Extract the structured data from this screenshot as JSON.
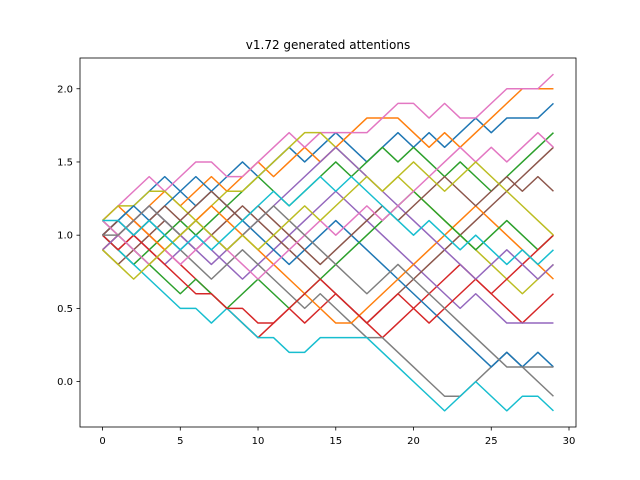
{
  "chart_data": {
    "type": "line",
    "title": "v1.72 generated attentions",
    "xlabel": "",
    "ylabel": "",
    "xlim": [
      -1.45,
      30.45
    ],
    "ylim": [
      -0.31,
      2.21
    ],
    "xticks": [
      0,
      5,
      10,
      15,
      20,
      25,
      30
    ],
    "yticks": [
      0.0,
      0.5,
      1.0,
      1.5,
      2.0
    ],
    "ytick_labels": [
      "0.0",
      "0.5",
      "1.0",
      "1.5",
      "2.0"
    ],
    "grid": false,
    "legend": "none",
    "x": [
      0,
      1,
      2,
      3,
      4,
      5,
      6,
      7,
      8,
      9,
      10,
      11,
      12,
      13,
      14,
      15,
      16,
      17,
      18,
      19,
      20,
      21,
      22,
      23,
      24,
      25,
      26,
      27,
      28,
      29
    ],
    "colors": [
      "#1f77b4",
      "#ff7f0e",
      "#2ca02c",
      "#d62728",
      "#9467bd",
      "#8c564b",
      "#e377c2",
      "#7f7f7f",
      "#bcbd22",
      "#17becf"
    ],
    "series": [
      {
        "values": [
          1.0,
          1.1,
          1.2,
          1.3,
          1.4,
          1.3,
          1.2,
          1.3,
          1.4,
          1.5,
          1.4,
          1.5,
          1.6,
          1.5,
          1.6,
          1.7,
          1.6,
          1.5,
          1.6,
          1.7,
          1.6,
          1.7,
          1.6,
          1.7,
          1.8,
          1.7,
          1.8,
          1.8,
          1.8,
          1.9
        ]
      },
      {
        "values": [
          1.1,
          1.2,
          1.1,
          1.2,
          1.3,
          1.2,
          1.3,
          1.4,
          1.3,
          1.4,
          1.5,
          1.4,
          1.5,
          1.6,
          1.5,
          1.6,
          1.7,
          1.8,
          1.8,
          1.8,
          1.7,
          1.6,
          1.7,
          1.6,
          1.7,
          1.8,
          1.9,
          2.0,
          2.0,
          2.0
        ]
      },
      {
        "values": [
          1.0,
          0.9,
          0.8,
          0.9,
          1.0,
          1.1,
          1.0,
          1.1,
          1.2,
          1.3,
          1.4,
          1.3,
          1.2,
          1.3,
          1.4,
          1.5,
          1.4,
          1.5,
          1.6,
          1.5,
          1.6,
          1.5,
          1.4,
          1.5,
          1.4,
          1.3,
          1.4,
          1.5,
          1.6,
          1.7
        ]
      },
      {
        "values": [
          0.9,
          1.0,
          1.1,
          1.0,
          0.9,
          0.8,
          0.7,
          0.6,
          0.5,
          0.4,
          0.3,
          0.4,
          0.5,
          0.4,
          0.5,
          0.6,
          0.5,
          0.4,
          0.3,
          0.4,
          0.5,
          0.6,
          0.7,
          0.8,
          0.7,
          0.6,
          0.5,
          0.4,
          0.5,
          0.6
        ]
      },
      {
        "values": [
          1.0,
          1.1,
          1.0,
          0.9,
          0.8,
          0.9,
          1.0,
          0.9,
          0.8,
          0.7,
          0.8,
          0.9,
          1.0,
          1.1,
          1.2,
          1.3,
          1.2,
          1.1,
          1.0,
          0.9,
          0.8,
          0.7,
          0.6,
          0.5,
          0.6,
          0.5,
          0.4,
          0.4,
          0.4,
          0.4
        ]
      },
      {
        "values": [
          0.9,
          0.8,
          0.9,
          1.0,
          1.1,
          1.0,
          0.9,
          1.0,
          1.1,
          1.2,
          1.1,
          1.0,
          0.9,
          0.8,
          0.7,
          0.6,
          0.5,
          0.4,
          0.5,
          0.6,
          0.7,
          0.8,
          0.9,
          1.0,
          1.1,
          1.2,
          1.3,
          1.4,
          1.5,
          1.6
        ]
      },
      {
        "values": [
          1.1,
          1.2,
          1.3,
          1.4,
          1.3,
          1.4,
          1.5,
          1.5,
          1.4,
          1.4,
          1.5,
          1.6,
          1.7,
          1.6,
          1.7,
          1.7,
          1.7,
          1.7,
          1.8,
          1.9,
          1.9,
          1.8,
          1.9,
          1.8,
          1.8,
          1.9,
          2.0,
          2.0,
          2.0,
          2.1
        ]
      },
      {
        "values": [
          1.0,
          0.9,
          1.0,
          1.1,
          1.0,
          0.9,
          0.8,
          0.7,
          0.8,
          0.9,
          0.8,
          0.7,
          0.6,
          0.5,
          0.6,
          0.5,
          0.4,
          0.3,
          0.3,
          0.2,
          0.1,
          0.0,
          -0.1,
          -0.1,
          0.0,
          0.1,
          0.2,
          0.1,
          0.0,
          -0.1
        ]
      },
      {
        "values": [
          1.1,
          1.2,
          1.2,
          1.3,
          1.3,
          1.2,
          1.1,
          1.2,
          1.3,
          1.3,
          1.4,
          1.5,
          1.6,
          1.7,
          1.7,
          1.6,
          1.5,
          1.4,
          1.3,
          1.4,
          1.3,
          1.2,
          1.1,
          1.0,
          0.9,
          0.8,
          0.7,
          0.6,
          0.7,
          0.8
        ]
      },
      {
        "values": [
          1.0,
          0.9,
          0.8,
          0.7,
          0.6,
          0.5,
          0.5,
          0.4,
          0.5,
          0.4,
          0.3,
          0.3,
          0.2,
          0.2,
          0.3,
          0.3,
          0.3,
          0.3,
          0.2,
          0.1,
          0.0,
          -0.1,
          -0.2,
          -0.1,
          0.0,
          -0.1,
          -0.2,
          -0.1,
          -0.1,
          -0.2
        ]
      },
      {
        "values": [
          1.0,
          1.1,
          1.2,
          1.1,
          1.2,
          1.3,
          1.4,
          1.3,
          1.2,
          1.1,
          1.0,
          0.9,
          0.8,
          0.9,
          1.0,
          1.1,
          1.0,
          0.9,
          0.8,
          0.7,
          0.6,
          0.5,
          0.4,
          0.3,
          0.2,
          0.1,
          0.2,
          0.1,
          0.2,
          0.1
        ]
      },
      {
        "values": [
          0.9,
          1.0,
          1.1,
          1.0,
          0.9,
          1.0,
          1.1,
          1.2,
          1.1,
          1.0,
          0.9,
          0.8,
          0.7,
          0.6,
          0.5,
          0.4,
          0.4,
          0.5,
          0.6,
          0.7,
          0.8,
          0.9,
          1.0,
          1.1,
          1.2,
          1.1,
          1.0,
          0.9,
          0.8,
          0.7
        ]
      },
      {
        "values": [
          1.1,
          1.0,
          0.9,
          0.8,
          0.7,
          0.6,
          0.7,
          0.6,
          0.5,
          0.6,
          0.7,
          0.6,
          0.5,
          0.6,
          0.7,
          0.8,
          0.9,
          1.0,
          1.1,
          1.2,
          1.3,
          1.2,
          1.1,
          1.0,
          0.9,
          1.0,
          1.1,
          1.0,
          0.9,
          1.0
        ]
      },
      {
        "values": [
          1.0,
          0.9,
          1.0,
          0.9,
          0.8,
          0.7,
          0.6,
          0.6,
          0.5,
          0.5,
          0.4,
          0.4,
          0.5,
          0.6,
          0.7,
          0.6,
          0.5,
          0.4,
          0.5,
          0.6,
          0.5,
          0.4,
          0.5,
          0.6,
          0.7,
          0.6,
          0.7,
          0.8,
          0.9,
          1.0
        ]
      },
      {
        "values": [
          0.9,
          1.0,
          1.1,
          1.2,
          1.1,
          1.0,
          0.9,
          0.8,
          0.9,
          1.0,
          1.1,
          1.2,
          1.3,
          1.4,
          1.5,
          1.6,
          1.5,
          1.4,
          1.3,
          1.2,
          1.1,
          1.0,
          0.9,
          0.8,
          0.7,
          0.8,
          0.9,
          0.8,
          0.7,
          0.8
        ]
      },
      {
        "values": [
          1.0,
          1.1,
          1.0,
          1.1,
          1.2,
          1.1,
          1.2,
          1.3,
          1.2,
          1.1,
          1.2,
          1.1,
          1.0,
          0.9,
          0.8,
          0.9,
          1.0,
          1.1,
          1.2,
          1.1,
          1.2,
          1.3,
          1.4,
          1.3,
          1.2,
          1.3,
          1.4,
          1.3,
          1.4,
          1.3
        ]
      },
      {
        "values": [
          1.1,
          1.0,
          0.9,
          0.8,
          0.9,
          0.8,
          0.9,
          1.0,
          0.9,
          0.8,
          0.7,
          0.8,
          0.9,
          1.0,
          1.1,
          1.0,
          1.1,
          1.2,
          1.1,
          1.2,
          1.3,
          1.4,
          1.5,
          1.6,
          1.5,
          1.6,
          1.5,
          1.6,
          1.7,
          1.6
        ]
      },
      {
        "values": [
          1.0,
          1.0,
          1.1,
          1.2,
          1.1,
          1.0,
          1.1,
          1.0,
          0.9,
          1.0,
          1.1,
          1.2,
          1.1,
          1.0,
          0.9,
          0.8,
          0.7,
          0.6,
          0.7,
          0.8,
          0.7,
          0.6,
          0.5,
          0.4,
          0.3,
          0.2,
          0.1,
          0.1,
          0.1,
          0.1
        ]
      },
      {
        "values": [
          0.9,
          0.8,
          0.7,
          0.8,
          0.9,
          1.0,
          1.1,
          1.0,
          0.9,
          1.0,
          0.9,
          1.0,
          1.1,
          1.2,
          1.1,
          1.2,
          1.3,
          1.4,
          1.3,
          1.4,
          1.5,
          1.4,
          1.3,
          1.4,
          1.5,
          1.4,
          1.3,
          1.2,
          1.1,
          1.0
        ]
      },
      {
        "values": [
          1.1,
          1.1,
          1.0,
          1.1,
          1.0,
          0.9,
          1.0,
          0.9,
          1.0,
          1.1,
          1.2,
          1.3,
          1.2,
          1.3,
          1.4,
          1.3,
          1.4,
          1.3,
          1.2,
          1.1,
          1.0,
          1.1,
          1.0,
          0.9,
          1.0,
          0.9,
          0.8,
          0.9,
          0.8,
          0.9
        ]
      }
    ]
  }
}
